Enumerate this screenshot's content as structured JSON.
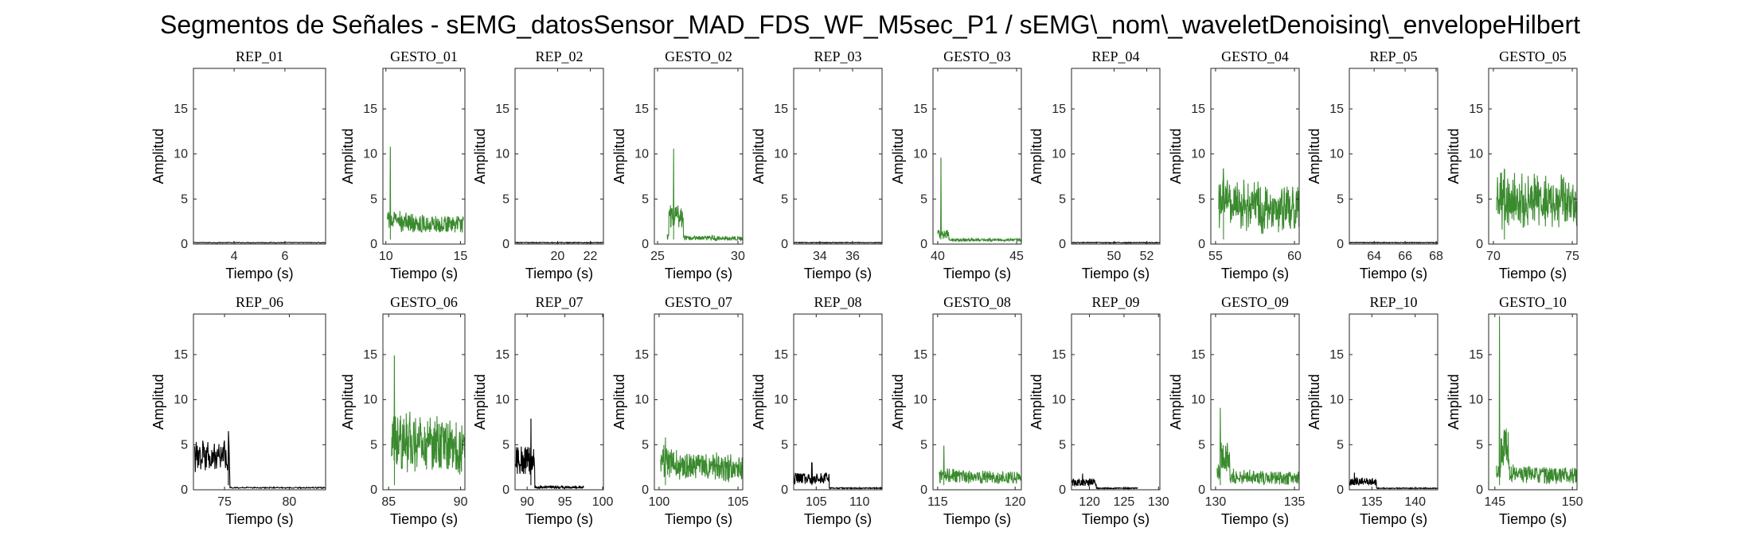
{
  "figure": {
    "suptitle": "Segmentos de Señales - sEMG_datosSensor_MAD_FDS_WF_M5sec_P1 / sEMG\\_nom\\_waveletDenoising\\_envelopeHilbert"
  },
  "colors": {
    "rep": "#000000",
    "gesto": "#3a8a2e",
    "axes": "#262626"
  },
  "chart_data": [
    {
      "type": "line",
      "title": "REP_01",
      "xlabel": "Tiempo (s)",
      "ylabel": "Amplitud",
      "xlim": [
        2.4,
        7.6
      ],
      "ylim": [
        0,
        19.5
      ],
      "xticks": [
        4,
        6
      ],
      "yticks": [
        0,
        5,
        10,
        15
      ],
      "color": "rep",
      "profile": {
        "base": 0.12,
        "noise": 0.08
      }
    },
    {
      "type": "line",
      "title": "GESTO_01",
      "xlabel": "Tiempo (s)",
      "ylabel": "Amplitud",
      "xlim": [
        9.8,
        15.3
      ],
      "ylim": [
        0,
        19.5
      ],
      "xticks": [
        10,
        15
      ],
      "yticks": [
        0,
        5,
        10,
        15
      ],
      "color": "gesto",
      "profile": {
        "x0": 10.1,
        "x1": 15.2,
        "spike": [
          10.3,
          10.8
        ],
        "base": 1.2,
        "noise": 1.8,
        "decay": 0.5
      }
    },
    {
      "type": "line",
      "title": "REP_02",
      "xlabel": "Tiempo (s)",
      "ylabel": "Amplitud",
      "xlim": [
        17.4,
        22.8
      ],
      "ylim": [
        0,
        19.5
      ],
      "xticks": [
        20,
        22
      ],
      "yticks": [
        0,
        5,
        10,
        15
      ],
      "color": "rep",
      "profile": {
        "base": 0.12,
        "noise": 0.08
      }
    },
    {
      "type": "line",
      "title": "GESTO_02",
      "xlabel": "Tiempo (s)",
      "ylabel": "Amplitud",
      "xlim": [
        24.8,
        30.3
      ],
      "ylim": [
        0,
        19.5
      ],
      "xticks": [
        25,
        30
      ],
      "yticks": [
        0,
        5,
        10,
        15
      ],
      "color": "gesto",
      "profile": {
        "x0": 25.6,
        "x1": 30.3,
        "spike": [
          26.0,
          10.6
        ],
        "base": 0.4,
        "noise": 0.5,
        "decay": 1.2,
        "burst": [
          [
            25.7,
            26.6,
            4.5
          ]
        ]
      }
    },
    {
      "type": "line",
      "title": "REP_03",
      "xlabel": "Tiempo (s)",
      "ylabel": "Amplitud",
      "xlim": [
        32.4,
        37.8
      ],
      "ylim": [
        0,
        19.5
      ],
      "xticks": [
        34,
        36
      ],
      "yticks": [
        0,
        5,
        10,
        15
      ],
      "color": "rep",
      "profile": {
        "base": 0.12,
        "noise": 0.08
      }
    },
    {
      "type": "line",
      "title": "GESTO_03",
      "xlabel": "Tiempo (s)",
      "ylabel": "Amplitud",
      "xlim": [
        39.7,
        45.3
      ],
      "ylim": [
        0,
        19.5
      ],
      "xticks": [
        40,
        45
      ],
      "yticks": [
        0,
        5,
        10,
        15
      ],
      "color": "gesto",
      "profile": {
        "x0": 40.0,
        "x1": 45.3,
        "spike": [
          40.2,
          9.6
        ],
        "base": 0.3,
        "noise": 0.3,
        "decay": 1.5,
        "burst": [
          [
            40.0,
            40.7,
            1.6
          ]
        ]
      }
    },
    {
      "type": "line",
      "title": "REP_04",
      "xlabel": "Tiempo (s)",
      "ylabel": "Amplitud",
      "xlim": [
        47.4,
        52.8
      ],
      "ylim": [
        0,
        19.5
      ],
      "xticks": [
        50,
        52
      ],
      "yticks": [
        0,
        5,
        10,
        15
      ],
      "color": "rep",
      "profile": {
        "base": 0.12,
        "noise": 0.08
      }
    },
    {
      "type": "line",
      "title": "GESTO_04",
      "xlabel": "Tiempo (s)",
      "ylabel": "Amplitud",
      "xlim": [
        54.7,
        60.3
      ],
      "ylim": [
        0,
        19.5
      ],
      "xticks": [
        55,
        60
      ],
      "yticks": [
        0,
        5,
        10,
        15
      ],
      "color": "gesto",
      "profile": {
        "x0": 55.2,
        "x1": 60.3,
        "spike": [
          55.5,
          8.4
        ],
        "base": 1.0,
        "noise": 4.2,
        "decay": 0.1
      }
    },
    {
      "type": "line",
      "title": "REP_05",
      "xlabel": "Tiempo (s)",
      "ylabel": "Amplitud",
      "xlim": [
        62.4,
        68.1
      ],
      "ylim": [
        0,
        19.5
      ],
      "xticks": [
        64,
        66,
        68
      ],
      "yticks": [
        0,
        5,
        10,
        15
      ],
      "color": "rep",
      "profile": {
        "base": 0.12,
        "noise": 0.08
      }
    },
    {
      "type": "line",
      "title": "GESTO_05",
      "xlabel": "Tiempo (s)",
      "ylabel": "Amplitud",
      "xlim": [
        69.7,
        75.3
      ],
      "ylim": [
        0,
        19.5
      ],
      "xticks": [
        70,
        75
      ],
      "yticks": [
        0,
        5,
        10,
        15
      ],
      "color": "gesto",
      "profile": {
        "x0": 70.2,
        "x1": 75.3,
        "spike": [
          70.7,
          8.3
        ],
        "base": 1.2,
        "noise": 4.5,
        "decay": 0.05
      }
    },
    {
      "type": "line",
      "title": "REP_06",
      "xlabel": "Tiempo (s)",
      "ylabel": "Amplitud",
      "xlim": [
        72.6,
        82.8
      ],
      "ylim": [
        0,
        19.5
      ],
      "xticks": [
        75,
        80
      ],
      "yticks": [
        0,
        5,
        10,
        15
      ],
      "color": "rep",
      "profile": {
        "x0": 72.7,
        "x1": 82.8,
        "spike": [
          75.3,
          6.5
        ],
        "base": 0.15,
        "noise": 0.15,
        "burst": [
          [
            72.7,
            75.4,
            5.5
          ]
        ]
      }
    },
    {
      "type": "line",
      "title": "GESTO_06",
      "xlabel": "Tiempo (s)",
      "ylabel": "Amplitud",
      "xlim": [
        84.6,
        90.3
      ],
      "ylim": [
        0,
        19.5
      ],
      "xticks": [
        85,
        90
      ],
      "yticks": [
        0,
        5,
        10,
        15
      ],
      "color": "gesto",
      "profile": {
        "x0": 85.2,
        "x1": 90.3,
        "spike": [
          85.4,
          14.9
        ],
        "base": 1.5,
        "noise": 5.0,
        "decay": 0.15
      }
    },
    {
      "type": "line",
      "title": "REP_07",
      "xlabel": "Tiempo (s)",
      "ylabel": "Amplitud",
      "xlim": [
        88.4,
        100.1
      ],
      "ylim": [
        0,
        19.5
      ],
      "xticks": [
        90,
        95,
        100
      ],
      "yticks": [
        0,
        5,
        10,
        15
      ],
      "color": "rep",
      "profile": {
        "x0": 88.5,
        "x1": 97.5,
        "spike": [
          90.5,
          7.9
        ],
        "base": 0.15,
        "noise": 0.25,
        "burst": [
          [
            88.5,
            91.0,
            4.8
          ]
        ]
      }
    },
    {
      "type": "line",
      "title": "GESTO_07",
      "xlabel": "Tiempo (s)",
      "ylabel": "Amplitud",
      "xlim": [
        99.7,
        105.3
      ],
      "ylim": [
        0,
        19.5
      ],
      "xticks": [
        100,
        105
      ],
      "yticks": [
        0,
        5,
        10,
        15
      ],
      "color": "gesto",
      "profile": {
        "x0": 100.1,
        "x1": 105.3,
        "spike": [
          100.4,
          5.8
        ],
        "base": 0.8,
        "noise": 2.8,
        "decay": 0.35
      }
    },
    {
      "type": "line",
      "title": "REP_08",
      "xlabel": "Tiempo (s)",
      "ylabel": "Amplitud",
      "xlim": [
        102.4,
        112.6
      ],
      "ylim": [
        0,
        19.5
      ],
      "xticks": [
        105,
        110
      ],
      "yticks": [
        0,
        5,
        10,
        15
      ],
      "color": "rep",
      "profile": {
        "x0": 102.4,
        "x1": 112.6,
        "spike": [
          104.5,
          3.0
        ],
        "base": 0.12,
        "noise": 0.12,
        "burst": [
          [
            102.4,
            106.5,
            1.9
          ]
        ]
      }
    },
    {
      "type": "line",
      "title": "GESTO_08",
      "xlabel": "Tiempo (s)",
      "ylabel": "Amplitud",
      "xlim": [
        114.7,
        120.4
      ],
      "ylim": [
        0,
        19.5
      ],
      "xticks": [
        115,
        120
      ],
      "yticks": [
        0,
        5,
        10,
        15
      ],
      "color": "gesto",
      "profile": {
        "x0": 115.1,
        "x1": 120.4,
        "spike": [
          115.4,
          4.9
        ],
        "base": 0.6,
        "noise": 1.4,
        "decay": 0.5
      }
    },
    {
      "type": "line",
      "title": "REP_09",
      "xlabel": "Tiempo (s)",
      "ylabel": "Amplitud",
      "xlim": [
        117.4,
        130.2
      ],
      "ylim": [
        0,
        19.5
      ],
      "xticks": [
        120,
        125,
        130
      ],
      "yticks": [
        0,
        5,
        10,
        15
      ],
      "color": "rep",
      "profile": {
        "x0": 117.5,
        "x1": 127.0,
        "spike": [
          119.0,
          1.8
        ],
        "base": 0.12,
        "noise": 0.1,
        "burst": [
          [
            117.5,
            121.0,
            1.2
          ]
        ]
      }
    },
    {
      "type": "line",
      "title": "GESTO_09",
      "xlabel": "Tiempo (s)",
      "ylabel": "Amplitud",
      "xlim": [
        129.7,
        135.3
      ],
      "ylim": [
        0,
        19.5
      ],
      "xticks": [
        130,
        135
      ],
      "yticks": [
        0,
        5,
        10,
        15
      ],
      "color": "gesto",
      "profile": {
        "x0": 130.1,
        "x1": 135.3,
        "spike": [
          130.3,
          9.1
        ],
        "base": 0.5,
        "noise": 1.5,
        "decay": 0.7,
        "burst": [
          [
            130.3,
            130.9,
            5.5
          ]
        ]
      }
    },
    {
      "type": "line",
      "title": "REP_10",
      "xlabel": "Tiempo (s)",
      "ylabel": "Amplitud",
      "xlim": [
        132.4,
        142.6
      ],
      "ylim": [
        0,
        19.5
      ],
      "xticks": [
        135,
        140
      ],
      "yticks": [
        0,
        5,
        10,
        15
      ],
      "color": "rep",
      "profile": {
        "x0": 132.4,
        "x1": 142.6,
        "spike": [
          133.0,
          1.9
        ],
        "base": 0.12,
        "noise": 0.1,
        "burst": [
          [
            132.4,
            135.5,
            1.3
          ]
        ]
      }
    },
    {
      "type": "line",
      "title": "GESTO_10",
      "xlabel": "Tiempo (s)",
      "ylabel": "Amplitud",
      "xlim": [
        144.6,
        150.3
      ],
      "ylim": [
        0,
        19.5
      ],
      "xticks": [
        145,
        150
      ],
      "yticks": [
        0,
        5,
        10,
        15
      ],
      "color": "gesto",
      "profile": {
        "x0": 145.1,
        "x1": 150.3,
        "spike": [
          145.3,
          19.3
        ],
        "base": 0.6,
        "noise": 1.8,
        "decay": 0.6,
        "burst": [
          [
            145.4,
            145.9,
            7.5
          ]
        ]
      }
    }
  ]
}
